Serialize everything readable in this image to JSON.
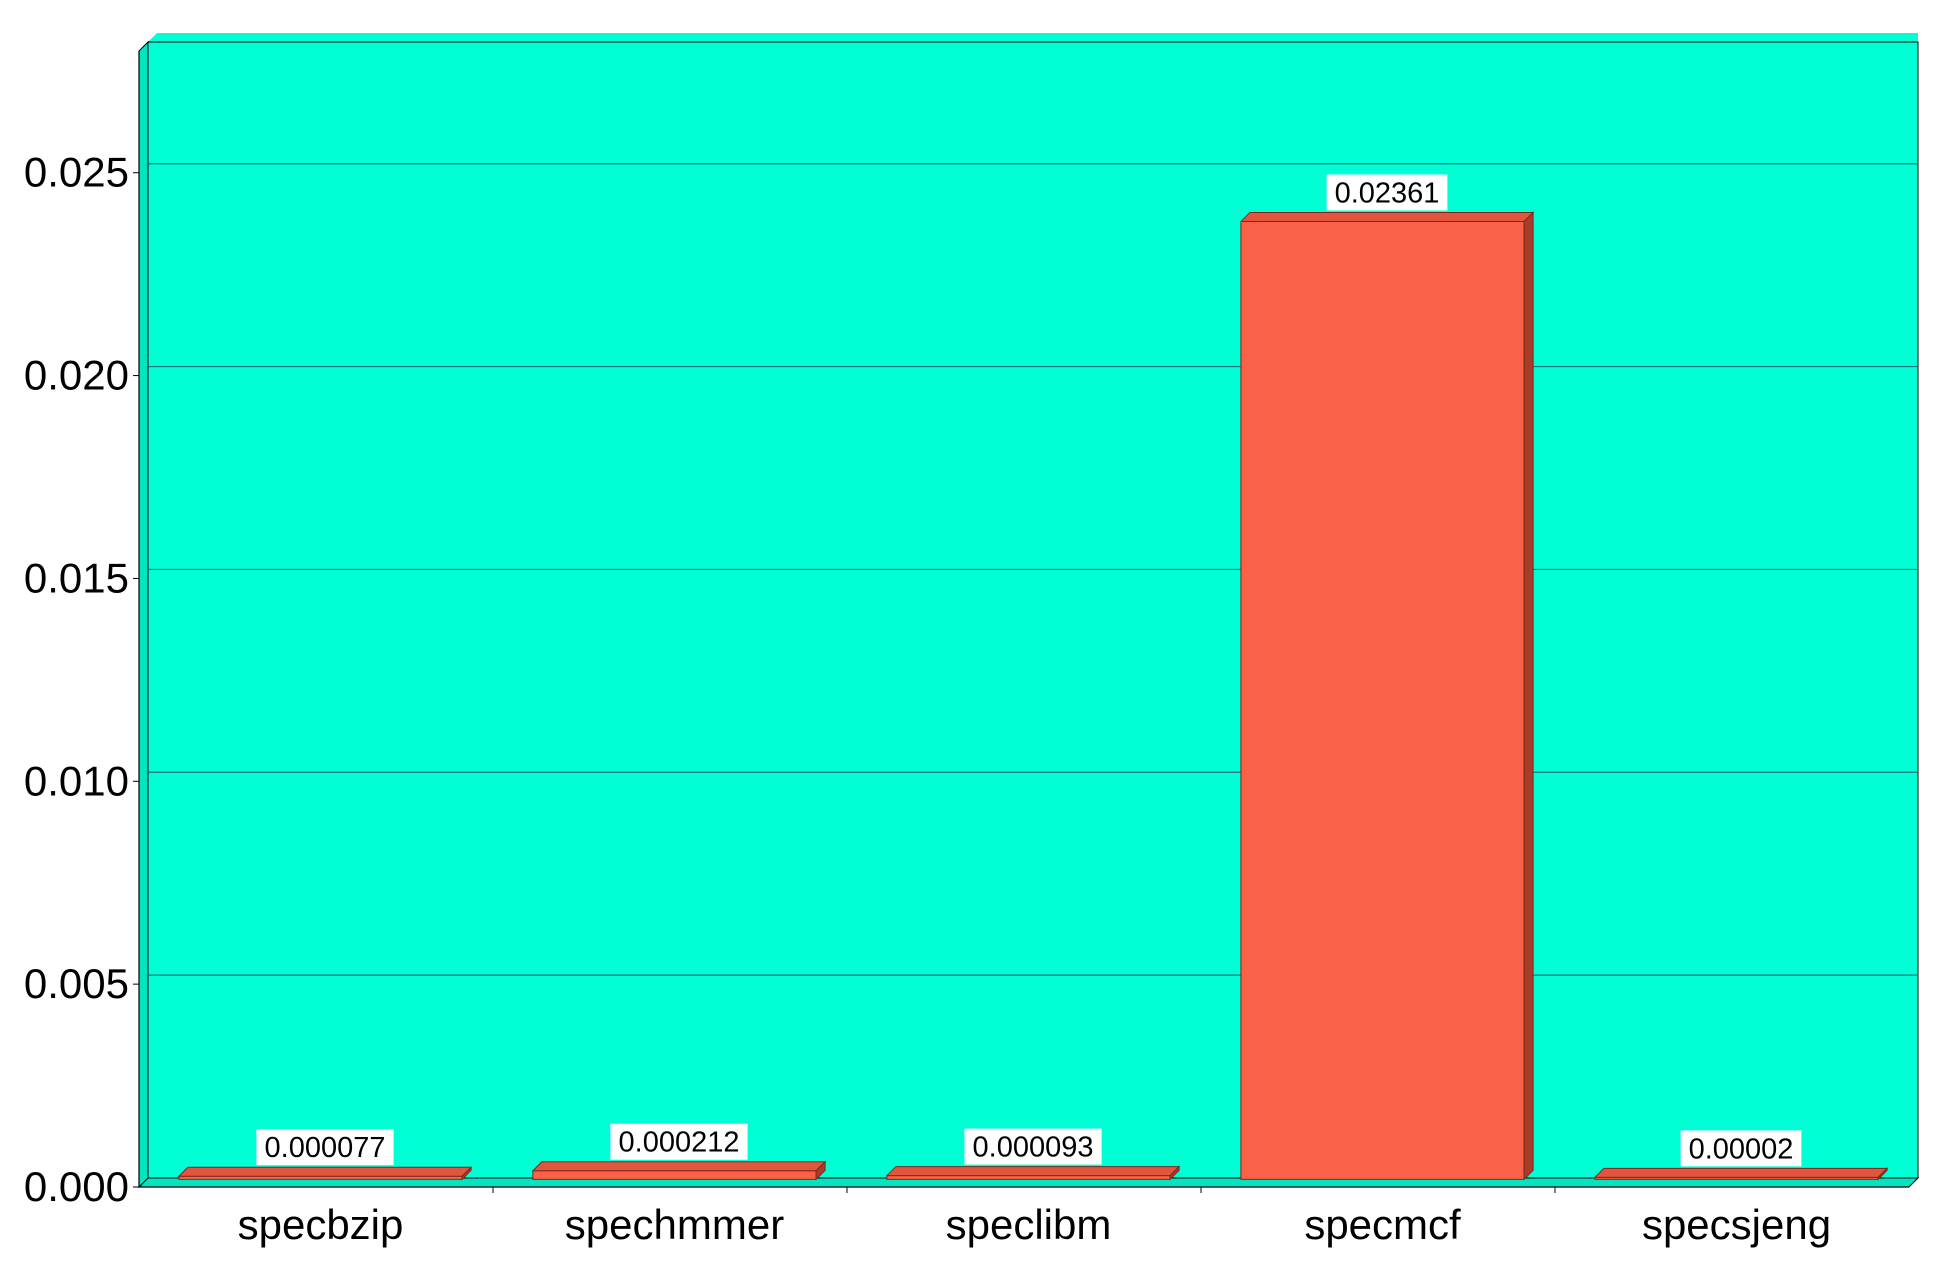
{
  "chart_data": {
    "type": "bar",
    "categories": [
      "specbzip",
      "spechmmer",
      "speclibm",
      "specmcf",
      "specsjeng"
    ],
    "values": [
      7.7e-05,
      0.000212,
      9.3e-05,
      0.02361,
      2e-05
    ],
    "data_labels": [
      "0.000077",
      "0.000212",
      "0.000093",
      "0.02361",
      "0.00002"
    ],
    "yticks": [
      "0.000",
      "0.005",
      "0.010",
      "0.015",
      "0.020",
      "0.025"
    ],
    "ytick_values": [
      0,
      0.005,
      0.01,
      0.015,
      0.02,
      0.025
    ],
    "ylim": [
      0,
      0.028
    ],
    "grid": true,
    "legend": "none",
    "colors": {
      "plot_background": "#00FFD5",
      "bar_face": "#FA6147",
      "bar_top": "#E2553E",
      "bar_side": "#A83C2A",
      "gridline": "#1E6E78",
      "label_box": "#ffffff"
    }
  }
}
